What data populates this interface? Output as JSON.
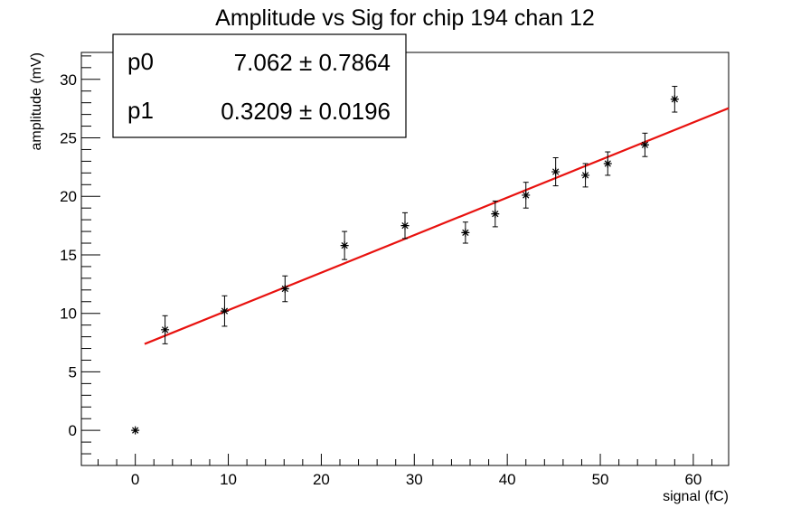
{
  "chart_data": {
    "type": "scatter",
    "title": "Amplitude vs Sig for chip 194 chan 12",
    "xlabel": "signal (fC)",
    "ylabel": "amplitude (mV)",
    "xlim": [
      -5.8,
      63.8
    ],
    "ylim": [
      -3,
      32.3
    ],
    "x_ticks": [
      0,
      10,
      20,
      30,
      40,
      50,
      60
    ],
    "y_ticks": [
      0,
      5,
      10,
      15,
      20,
      25,
      30
    ],
    "grid": false,
    "series": [
      {
        "marker": "asterisk",
        "color": "#000000",
        "points": [
          {
            "x": 0,
            "y": 0,
            "err": 0
          },
          {
            "x": 3.2,
            "y": 8.6,
            "err": 1.2
          },
          {
            "x": 9.6,
            "y": 10.2,
            "err": 1.3
          },
          {
            "x": 16.1,
            "y": 12.1,
            "err": 1.1
          },
          {
            "x": 22.5,
            "y": 15.8,
            "err": 1.2
          },
          {
            "x": 29.0,
            "y": 17.5,
            "err": 1.1
          },
          {
            "x": 35.5,
            "y": 16.9,
            "err": 0.9
          },
          {
            "x": 38.7,
            "y": 18.5,
            "err": 1.1
          },
          {
            "x": 42.0,
            "y": 20.1,
            "err": 1.1
          },
          {
            "x": 45.2,
            "y": 22.1,
            "err": 1.2
          },
          {
            "x": 48.4,
            "y": 21.8,
            "err": 1.0
          },
          {
            "x": 50.8,
            "y": 22.8,
            "err": 1.0
          },
          {
            "x": 54.8,
            "y": 24.4,
            "err": 1.0
          },
          {
            "x": 58.0,
            "y": 28.3,
            "err": 1.1
          }
        ]
      }
    ],
    "fit": {
      "color": "#e8120f",
      "p0": 7.062,
      "p1": 0.3209,
      "x_range": [
        1.0,
        63.8
      ]
    },
    "stats_box": {
      "placement": "top-left",
      "rows": [
        {
          "name": "p0",
          "value": "7.062",
          "error": "0.7864"
        },
        {
          "name": "p1",
          "value": "0.3209",
          "error": "0.0196"
        }
      ]
    }
  }
}
